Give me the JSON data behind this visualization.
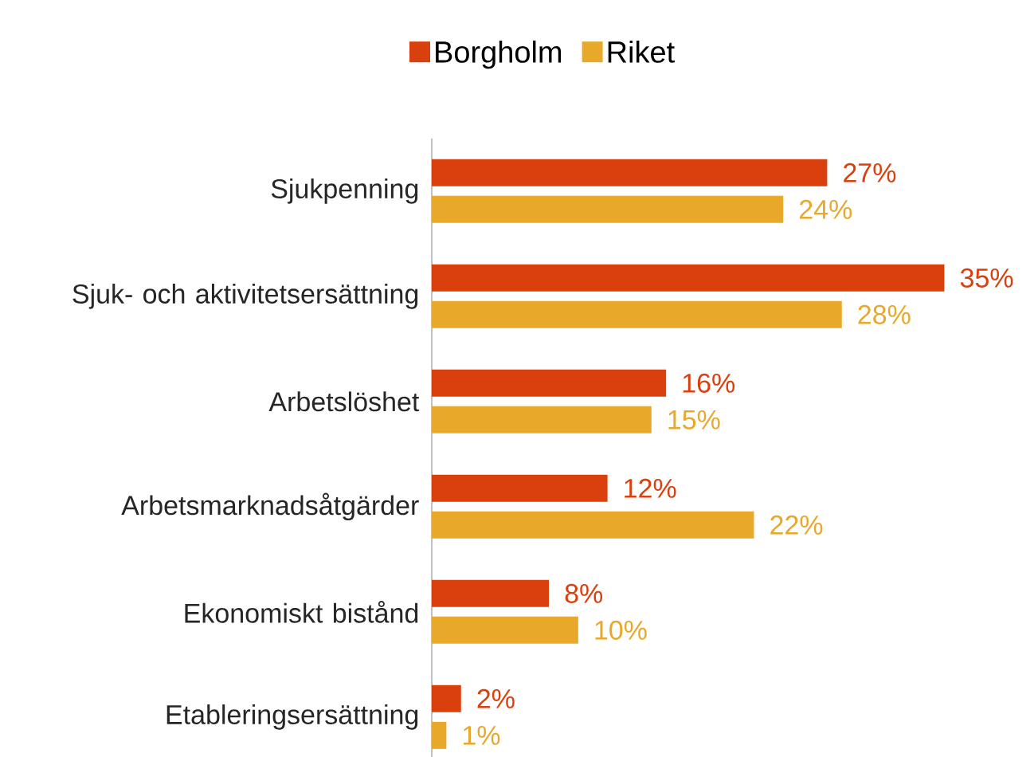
{
  "chart_data": {
    "type": "bar",
    "orientation": "horizontal",
    "legend": "top",
    "categories": [
      "Sjukpenning",
      "Sjuk- och aktivitetsersättning",
      "Arbetslöshet",
      "Arbetsmarknadsåtgärder",
      "Ekonomiskt bistånd",
      "Etableringsersättning"
    ],
    "series": [
      {
        "name": "Borgholm",
        "color": "#d9400e",
        "values": [
          27,
          35,
          16,
          12,
          8,
          2
        ],
        "value_labels": [
          "27%",
          "35%",
          "16%",
          "12%",
          "8%",
          "2%"
        ]
      },
      {
        "name": "Riket",
        "color": "#e8a82a",
        "values": [
          24,
          28,
          15,
          22,
          10,
          1
        ],
        "value_labels": [
          "24%",
          "28%",
          "15%",
          "22%",
          "10%",
          "1%"
        ]
      }
    ]
  }
}
